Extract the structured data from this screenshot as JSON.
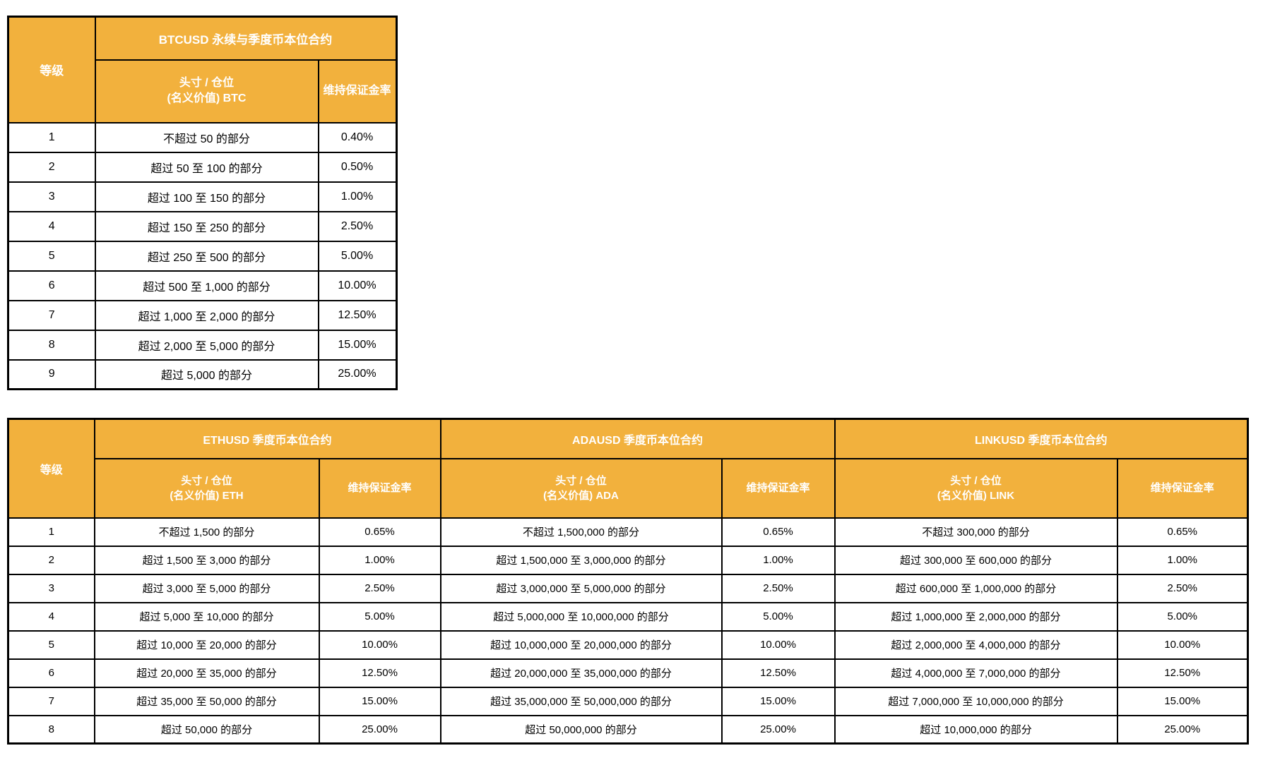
{
  "style": {
    "header_bg": "#F2B13D",
    "header_text_color": "#FFFFFF",
    "body_text_color": "#000000",
    "border_color": "#000000",
    "page_bg": "#FFFFFF"
  },
  "tables": [
    {
      "name": "btc-margin-table",
      "level_header": "等级",
      "groups": [
        {
          "title": "BTCUSD 永续与季度币本位合约",
          "position_header_line1": "头寸 / 仓位",
          "position_header_line2": "(名义价值) BTC",
          "rate_header": "维持保证金率"
        }
      ],
      "rows": [
        {
          "level": "1",
          "cells": [
            {
              "position": "不超过 50 的部分",
              "rate": "0.40%"
            }
          ]
        },
        {
          "level": "2",
          "cells": [
            {
              "position": "超过 50 至 100 的部分",
              "rate": "0.50%"
            }
          ]
        },
        {
          "level": "3",
          "cells": [
            {
              "position": "超过 100 至 150 的部分",
              "rate": "1.00%"
            }
          ]
        },
        {
          "level": "4",
          "cells": [
            {
              "position": "超过 150 至 250 的部分",
              "rate": "2.50%"
            }
          ]
        },
        {
          "level": "5",
          "cells": [
            {
              "position": "超过 250 至 500 的部分",
              "rate": "5.00%"
            }
          ]
        },
        {
          "level": "6",
          "cells": [
            {
              "position": "超过 500 至 1,000 的部分",
              "rate": "10.00%"
            }
          ]
        },
        {
          "level": "7",
          "cells": [
            {
              "position": "超过 1,000 至 2,000 的部分",
              "rate": "12.50%"
            }
          ]
        },
        {
          "level": "8",
          "cells": [
            {
              "position": "超过 2,000 至 5,000 的部分",
              "rate": "15.00%"
            }
          ]
        },
        {
          "level": "9",
          "cells": [
            {
              "position": "超过 5,000 的部分",
              "rate": "25.00%"
            }
          ]
        }
      ]
    },
    {
      "name": "alt-margin-table",
      "level_header": "等级",
      "groups": [
        {
          "title": "ETHUSD 季度币本位合约",
          "position_header_line1": "头寸 / 仓位",
          "position_header_line2": "(名义价值) ETH",
          "rate_header": "维持保证金率"
        },
        {
          "title": "ADAUSD 季度币本位合约",
          "position_header_line1": "头寸 / 仓位",
          "position_header_line2": "(名义价值) ADA",
          "rate_header": "维持保证金率"
        },
        {
          "title": "LINKUSD 季度币本位合约",
          "position_header_line1": "头寸 / 仓位",
          "position_header_line2": "(名义价值) LINK",
          "rate_header": "维持保证金率"
        }
      ],
      "rows": [
        {
          "level": "1",
          "cells": [
            {
              "position": "不超过 1,500 的部分",
              "rate": "0.65%"
            },
            {
              "position": "不超过 1,500,000 的部分",
              "rate": "0.65%"
            },
            {
              "position": "不超过 300,000 的部分",
              "rate": "0.65%"
            }
          ]
        },
        {
          "level": "2",
          "cells": [
            {
              "position": "超过 1,500 至 3,000 的部分",
              "rate": "1.00%"
            },
            {
              "position": "超过 1,500,000 至 3,000,000 的部分",
              "rate": "1.00%"
            },
            {
              "position": "超过 300,000 至 600,000 的部分",
              "rate": "1.00%"
            }
          ]
        },
        {
          "level": "3",
          "cells": [
            {
              "position": "超过 3,000 至 5,000 的部分",
              "rate": "2.50%"
            },
            {
              "position": "超过 3,000,000 至 5,000,000 的部分",
              "rate": "2.50%"
            },
            {
              "position": "超过 600,000 至 1,000,000 的部分",
              "rate": "2.50%"
            }
          ]
        },
        {
          "level": "4",
          "cells": [
            {
              "position": "超过 5,000 至 10,000 的部分",
              "rate": "5.00%"
            },
            {
              "position": "超过 5,000,000 至 10,000,000 的部分",
              "rate": "5.00%"
            },
            {
              "position": "超过 1,000,000 至 2,000,000 的部分",
              "rate": "5.00%"
            }
          ]
        },
        {
          "level": "5",
          "cells": [
            {
              "position": "超过 10,000 至 20,000 的部分",
              "rate": "10.00%"
            },
            {
              "position": "超过 10,000,000 至 20,000,000 的部分",
              "rate": "10.00%"
            },
            {
              "position": "超过 2,000,000 至 4,000,000 的部分",
              "rate": "10.00%"
            }
          ]
        },
        {
          "level": "6",
          "cells": [
            {
              "position": "超过 20,000 至 35,000 的部分",
              "rate": "12.50%"
            },
            {
              "position": "超过 20,000,000 至 35,000,000 的部分",
              "rate": "12.50%"
            },
            {
              "position": "超过 4,000,000 至 7,000,000 的部分",
              "rate": "12.50%"
            }
          ]
        },
        {
          "level": "7",
          "cells": [
            {
              "position": "超过 35,000 至 50,000 的部分",
              "rate": "15.00%"
            },
            {
              "position": "超过 35,000,000 至 50,000,000 的部分",
              "rate": "15.00%"
            },
            {
              "position": "超过 7,000,000 至 10,000,000 的部分",
              "rate": "15.00%"
            }
          ]
        },
        {
          "level": "8",
          "cells": [
            {
              "position": "超过 50,000 的部分",
              "rate": "25.00%"
            },
            {
              "position": "超过 50,000,000 的部分",
              "rate": "25.00%"
            },
            {
              "position": "超过 10,000,000 的部分",
              "rate": "25.00%"
            }
          ]
        }
      ]
    }
  ]
}
